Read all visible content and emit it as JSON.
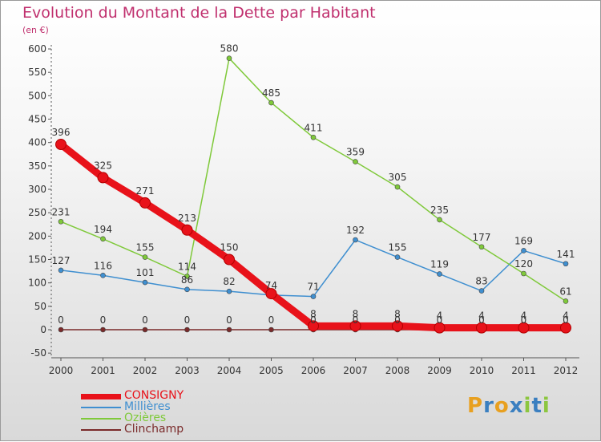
{
  "header": {
    "title": "Evolution du Montant de la Dette par Habitant",
    "subtitle": "(en €)"
  },
  "logo": {
    "text": [
      "P",
      "r",
      "o",
      "x",
      "i",
      "t",
      "i"
    ],
    "colors": [
      "#e8a020",
      "#3a7fc0",
      "#e8a020",
      "#3a7fc0",
      "#8cc63f",
      "#3a7fc0",
      "#8cc63f"
    ]
  },
  "chart_data": {
    "type": "line",
    "title": "Evolution du Montant de la Dette par Habitant",
    "ylabel": "(en €)",
    "xlabel": "",
    "x": [
      "2000",
      "2001",
      "2002",
      "2003",
      "2004",
      "2005",
      "2006",
      "2007",
      "2008",
      "2009",
      "2010",
      "2011",
      "2012"
    ],
    "ylim": [
      -50,
      600
    ],
    "yticks": [
      -50,
      0,
      50,
      100,
      150,
      200,
      250,
      300,
      350,
      400,
      450,
      500,
      550,
      600
    ],
    "grid": false,
    "legend_position": "bottom-left",
    "series": [
      {
        "name": "CONSIGNY",
        "color": "#e8121a",
        "emphasis": true,
        "values": [
          396,
          325,
          271,
          213,
          150,
          77,
          8,
          8,
          8,
          4,
          4,
          4,
          4
        ],
        "labels": [
          "396",
          "325",
          "271",
          "213",
          "150",
          "",
          "8",
          "8",
          "8",
          "4",
          "4",
          "4",
          "4"
        ]
      },
      {
        "name": "Millières",
        "color": "#3f8fd0",
        "values": [
          127,
          116,
          101,
          86,
          82,
          74,
          71,
          192,
          155,
          119,
          83,
          169,
          141
        ],
        "labels": [
          "127",
          "116",
          "101",
          "86",
          "82",
          "74",
          "71",
          "192",
          "155",
          "119",
          "83",
          "169",
          "141"
        ]
      },
      {
        "name": "Ozières",
        "color": "#7fc93a",
        "values": [
          231,
          194,
          155,
          114,
          580,
          485,
          411,
          359,
          305,
          235,
          177,
          120,
          61
        ],
        "labels": [
          "231",
          "194",
          "155",
          "114",
          "580",
          "485",
          "411",
          "359",
          "305",
          "235",
          "177",
          "120",
          "61"
        ]
      },
      {
        "name": "Clinchamp",
        "color": "#7a2a2a",
        "values": [
          0,
          0,
          0,
          0,
          0,
          0,
          0,
          0,
          0,
          0,
          0,
          0,
          0
        ],
        "labels": [
          "0",
          "0",
          "0",
          "0",
          "0",
          "0",
          "0",
          "0",
          "0",
          "0",
          "0",
          "0",
          "0"
        ]
      }
    ]
  }
}
